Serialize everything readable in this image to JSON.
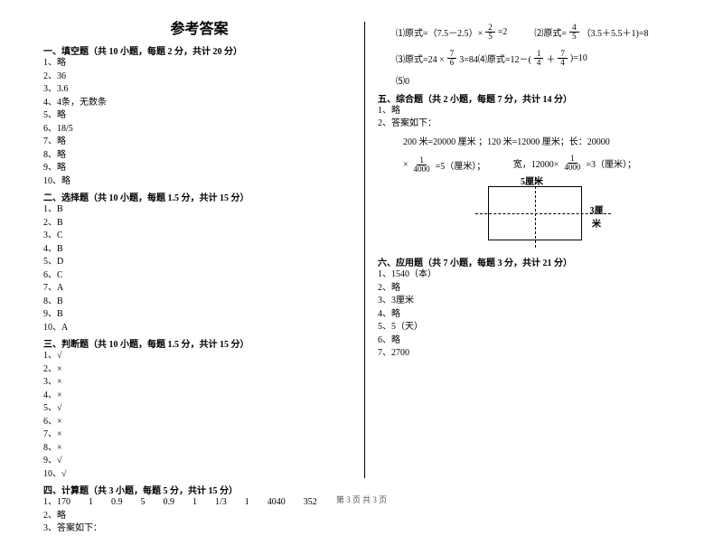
{
  "title": "参考答案",
  "footer": "第 3 页 共 3 页",
  "left": {
    "sec1": {
      "header": "一、填空题（共 10 小题，每题 2 分，共计 20 分）",
      "items": [
        "1、略",
        "2、36",
        "3、3.6",
        "4、4条，无数条",
        "5、略",
        "6、18/5",
        "7、略",
        "8、略",
        "9、略",
        "10、略"
      ]
    },
    "sec2": {
      "header": "二、选择题（共 10 小题，每题 1.5 分，共计 15 分）",
      "items": [
        "1、B",
        "2、B",
        "3、C",
        "4、B",
        "5、D",
        "6、C",
        "7、A",
        "8、B",
        "9、B",
        "10、A"
      ]
    },
    "sec3": {
      "header": "三、判断题（共 10 小题，每题 1.5 分，共计 15 分）",
      "items": [
        "1、√",
        "2、×",
        "3、×",
        "4、×",
        "5、√",
        "6、×",
        "7、×",
        "8、×",
        "9、√",
        "10、√"
      ]
    },
    "sec4": {
      "header": "四、计算题（共 3 小题，每题 5 分，共计 15 分）",
      "items": [
        "1、170　　1　　0.9　　5　　0.9　　1　　1/3　　1　　4040　　352",
        "2、略",
        "3、答案如下："
      ]
    }
  },
  "right": {
    "calc1": {
      "a_pre": "⑴原式=（7.5－2.5）×",
      "a_frac_n": "2",
      "a_frac_d": "5",
      "a_post": "=2",
      "b_pre": "⑵原式=",
      "b_frac_n": "4",
      "b_frac_d": "5",
      "b_post": "（3.5＋5.5＋1)=8"
    },
    "calc2": {
      "a_pre": "⑶原式=24 × ",
      "a_frac_n": "7",
      "a_frac_d": "6",
      "a_mid": "3=84⑷原式=12－(",
      "b1_n": "1",
      "b1_d": "4",
      "plus": "＋",
      "b2_n": "7",
      "b2_d": "4",
      "a_post": ")=10"
    },
    "calc3": "⑸0",
    "sec5": {
      "header": "五、综合题（共 2 小题，每题 7 分，共计 14 分）",
      "items": [
        "1、略",
        "2、答案如下："
      ]
    },
    "work": {
      "l1": "200 米=20000 厘米 ；120 米=12000 厘米；长：20000",
      "l2_pre": "×",
      "l2_n": "1",
      "l2_d": "4000",
      "l2_post": "=5（厘米）；",
      "l3_pre": "宽，12000×",
      "l3_n": "1",
      "l3_d": "4000",
      "l3_post": "=3（厘米）；"
    },
    "fig": {
      "top": "5厘米",
      "right": "3厘米"
    },
    "sec6": {
      "header": "六、应用题（共 7 小题，每题 3 分，共计 21 分）",
      "items": [
        "1、1540（本）",
        "2、略",
        "3、3厘米",
        "4、略",
        "5、5（天）",
        "6、略",
        "7、2700"
      ]
    }
  }
}
